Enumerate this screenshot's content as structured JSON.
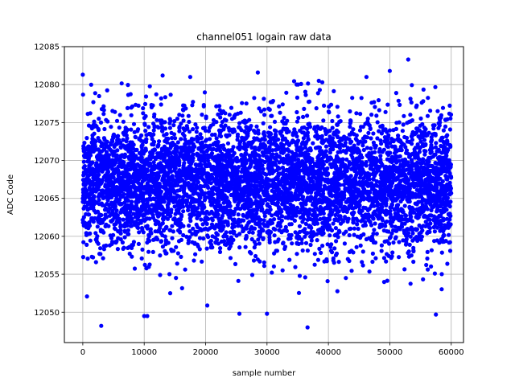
{
  "chart_data": {
    "type": "scatter",
    "title": "channel051 logain raw data",
    "xlabel": "sample number",
    "ylabel": "ADC Code",
    "xlim": [
      -3000,
      62000
    ],
    "ylim": [
      12046,
      12085
    ],
    "xticks": [
      0,
      10000,
      20000,
      30000,
      40000,
      50000,
      60000
    ],
    "yticks": [
      12050,
      12055,
      12060,
      12065,
      12070,
      12075,
      12080,
      12085
    ],
    "xtick_labels": [
      "0",
      "10000",
      "20000",
      "30000",
      "40000",
      "50000",
      "60000"
    ],
    "ytick_labels": [
      "12050",
      "12055",
      "12060",
      "12065",
      "12070",
      "12075",
      "12080",
      "12085"
    ],
    "grid": true,
    "marker_color": "#0000ff",
    "sample_count": 60000,
    "x_range": [
      0,
      59999
    ],
    "central_band": [
      12058,
      12076
    ],
    "outliers": [
      {
        "x": 0,
        "y": 12081.3
      },
      {
        "x": 3000,
        "y": 12048.2
      },
      {
        "x": 10000,
        "y": 12049.5
      },
      {
        "x": 10500,
        "y": 12049.5
      },
      {
        "x": 13000,
        "y": 12081.2
      },
      {
        "x": 17500,
        "y": 12081.0
      },
      {
        "x": 28500,
        "y": 12081.6
      },
      {
        "x": 36600,
        "y": 12048.0
      },
      {
        "x": 50000,
        "y": 12081.8
      },
      {
        "x": 53000,
        "y": 12083.3
      },
      {
        "x": 57500,
        "y": 12049.7
      },
      {
        "x": 46200,
        "y": 12081.0
      },
      {
        "x": 39000,
        "y": 12080.3
      },
      {
        "x": 25500,
        "y": 12049.8
      },
      {
        "x": 30000,
        "y": 12049.8
      }
    ]
  }
}
